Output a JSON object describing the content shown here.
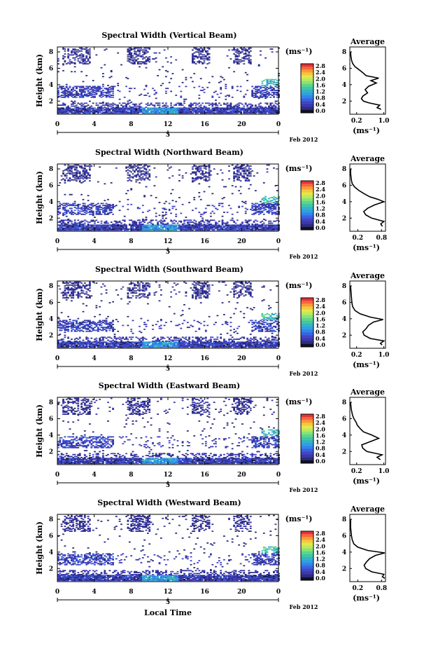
{
  "xaxis_label": "Local Time",
  "colorbar": {
    "unit": "(ms⁻¹)",
    "ticks": [
      "2.8",
      "2.4",
      "2.0",
      "1.6",
      "1.2",
      "0.8",
      "0.4",
      "0.0"
    ],
    "colors": [
      "#e3323a",
      "#f7663a",
      "#fb9a3a",
      "#f4c83d",
      "#e4e84a",
      "#b9ea5f",
      "#8ae277",
      "#5cd68a",
      "#3fc6a7",
      "#36b2c6",
      "#2fa0e0",
      "#2f86ec",
      "#3a63e0",
      "#4545c8",
      "#3b38a8",
      "#2c2c80",
      "#111122"
    ]
  },
  "date_label": "Feb 2012",
  "day_tick": "5",
  "average_panels": {
    "title": "Average",
    "unit": "(ms⁻¹)"
  },
  "chart_data": [
    {
      "type": "heatmap",
      "title": "Spectral Width (Vertical Beam)",
      "ylabel": "Height (km)",
      "yticks": [
        "2",
        "4",
        "6",
        "8"
      ],
      "xticks": [
        "0",
        "4",
        "8",
        "12",
        "16",
        "20",
        "0"
      ],
      "ylim": [
        0.4,
        8.6
      ],
      "xlim": [
        0,
        24
      ],
      "clim": [
        0.0,
        2.8
      ],
      "average_profile": {
        "xticks": [
          "0.2",
          "1.0"
        ],
        "xlim": [
          0.0,
          1.05
        ],
        "height_km": [
          1.0,
          1.2,
          1.5,
          1.8,
          2.0,
          2.3,
          2.6,
          3.0,
          3.4,
          3.8,
          4.2,
          4.5,
          4.8,
          5.1,
          5.4,
          5.8,
          6.2,
          6.6,
          7.0,
          7.5,
          8.0
        ],
        "value": [
          0.92,
          0.8,
          0.88,
          0.55,
          0.4,
          0.34,
          0.38,
          0.52,
          0.45,
          0.55,
          0.78,
          0.62,
          0.85,
          0.48,
          0.4,
          0.28,
          0.15,
          0.08,
          0.05,
          0.03,
          0.02
        ]
      }
    },
    {
      "type": "heatmap",
      "title": "Spectral Width (Northward Beam)",
      "ylabel": "Height (km)",
      "yticks": [
        "2",
        "4",
        "6",
        "8"
      ],
      "xticks": [
        "0",
        "4",
        "8",
        "12",
        "16",
        "20",
        "0"
      ],
      "ylim": [
        0.4,
        8.6
      ],
      "xlim": [
        0,
        24
      ],
      "clim": [
        0.0,
        2.8
      ],
      "average_profile": {
        "xticks": [
          "0.2",
          "0.8"
        ],
        "xlim": [
          0.0,
          0.9
        ],
        "height_km": [
          1.0,
          1.3,
          1.6,
          2.0,
          2.4,
          2.8,
          3.2,
          3.6,
          4.0,
          4.3,
          4.6,
          5.0,
          5.4,
          5.8,
          6.2,
          6.6,
          7.0,
          7.5,
          8.0
        ],
        "value": [
          0.82,
          0.78,
          0.86,
          0.55,
          0.4,
          0.35,
          0.45,
          0.62,
          0.86,
          0.7,
          0.5,
          0.35,
          0.22,
          0.12,
          0.06,
          0.04,
          0.03,
          0.02,
          0.02
        ]
      }
    },
    {
      "type": "heatmap",
      "title": "Spectral Width (Southward Beam)",
      "ylabel": "Height (km)",
      "yticks": [
        "2",
        "4",
        "6",
        "8"
      ],
      "xticks": [
        "0",
        "4",
        "8",
        "12",
        "16",
        "20",
        "0"
      ],
      "ylim": [
        0.4,
        8.6
      ],
      "xlim": [
        0,
        24
      ],
      "clim": [
        0.0,
        2.8
      ],
      "average_profile": {
        "xticks": [
          "0.2",
          "1.0"
        ],
        "xlim": [
          0.0,
          1.05
        ],
        "height_km": [
          0.8,
          1.0,
          1.3,
          1.6,
          2.0,
          2.4,
          2.8,
          3.2,
          3.6,
          3.9,
          4.2,
          4.6,
          5.0,
          5.5,
          6.0,
          6.5,
          7.0,
          7.5,
          8.0
        ],
        "value": [
          0.95,
          0.9,
          1.0,
          0.6,
          0.42,
          0.38,
          0.48,
          0.55,
          0.7,
          0.98,
          0.6,
          0.3,
          0.15,
          0.08,
          0.06,
          0.05,
          0.04,
          0.03,
          0.02
        ]
      }
    },
    {
      "type": "heatmap",
      "title": "Spectral Width (Eastward Beam)",
      "ylabel": "Height (km)",
      "yticks": [
        "2",
        "4",
        "6",
        "8"
      ],
      "xticks": [
        "0",
        "4",
        "8",
        "12",
        "16",
        "20",
        "0"
      ],
      "ylim": [
        0.4,
        8.6
      ],
      "xlim": [
        0,
        24
      ],
      "clim": [
        0.0,
        2.8
      ],
      "average_profile": {
        "xticks": [
          "0.2",
          "1.0"
        ],
        "xlim": [
          0.0,
          1.05
        ],
        "height_km": [
          1.0,
          1.3,
          1.6,
          2.0,
          2.4,
          2.8,
          3.2,
          3.6,
          4.0,
          4.4,
          4.8,
          5.2,
          5.6,
          6.0,
          6.4,
          6.8,
          7.2,
          7.6,
          8.0
        ],
        "value": [
          0.9,
          0.8,
          0.95,
          0.5,
          0.38,
          0.35,
          0.6,
          0.85,
          0.65,
          0.4,
          0.3,
          0.22,
          0.18,
          0.12,
          0.08,
          0.06,
          0.04,
          0.03,
          0.02
        ]
      }
    },
    {
      "type": "heatmap",
      "title": "Spectral Width (Westward Beam)",
      "ylabel": "Height (km)",
      "yticks": [
        "2",
        "4",
        "6",
        "8"
      ],
      "xticks": [
        "0",
        "4",
        "8",
        "12",
        "16",
        "20",
        "0"
      ],
      "ylim": [
        0.4,
        8.6
      ],
      "xlim": [
        0,
        24
      ],
      "clim": [
        0.0,
        2.8
      ],
      "average_profile": {
        "xticks": [
          "0.2",
          "0.8"
        ],
        "xlim": [
          0.0,
          0.9
        ],
        "height_km": [
          0.8,
          1.0,
          1.3,
          1.6,
          2.0,
          2.4,
          2.8,
          3.2,
          3.6,
          3.9,
          4.2,
          4.6,
          5.0,
          5.5,
          6.0,
          6.5,
          7.0,
          7.5,
          8.0
        ],
        "value": [
          0.88,
          0.82,
          0.86,
          0.55,
          0.4,
          0.36,
          0.42,
          0.5,
          0.65,
          0.88,
          0.45,
          0.2,
          0.1,
          0.06,
          0.04,
          0.03,
          0.02,
          0.02,
          0.02
        ]
      }
    }
  ]
}
